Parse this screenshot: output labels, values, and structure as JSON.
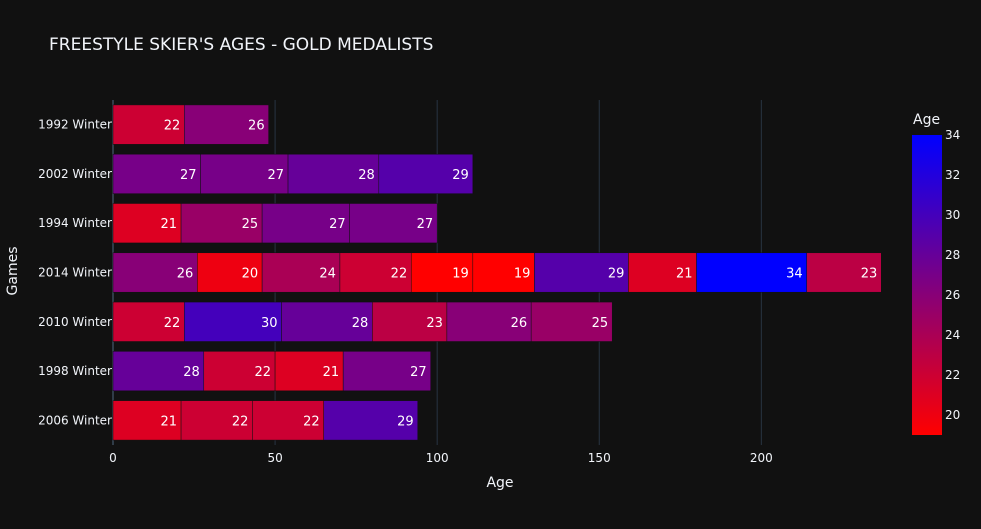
{
  "chart_data": {
    "type": "bar",
    "orientation": "horizontal",
    "stacked": true,
    "title": "FREESTYLE SKIER'S AGES - GOLD MEDALISTS",
    "xlabel": "Age",
    "ylabel": "Games",
    "xlim": [
      0,
      240
    ],
    "x_ticks": [
      0,
      50,
      100,
      150,
      200
    ],
    "grid": true,
    "categories": [
      "1992 Winter",
      "2002 Winter",
      "1994 Winter",
      "2014 Winter",
      "2010 Winter",
      "1998 Winter",
      "2006 Winter"
    ],
    "segments": [
      [
        22,
        26
      ],
      [
        27,
        27,
        28,
        29
      ],
      [
        21,
        25,
        27,
        27
      ],
      [
        26,
        20,
        24,
        22,
        19,
        19,
        29,
        21,
        34,
        23
      ],
      [
        22,
        30,
        28,
        23,
        26,
        25
      ],
      [
        28,
        22,
        21,
        27
      ],
      [
        21,
        22,
        22,
        29
      ]
    ],
    "colorbar": {
      "title": "Age",
      "min": 19,
      "max": 34,
      "ticks": [
        20,
        22,
        24,
        26,
        28,
        30,
        32,
        34
      ],
      "color_low": "#ff0000",
      "color_high": "#0000ff"
    },
    "colors": {
      "background": "#111111",
      "grid": "#283442",
      "text": "#f2f5fa"
    }
  }
}
